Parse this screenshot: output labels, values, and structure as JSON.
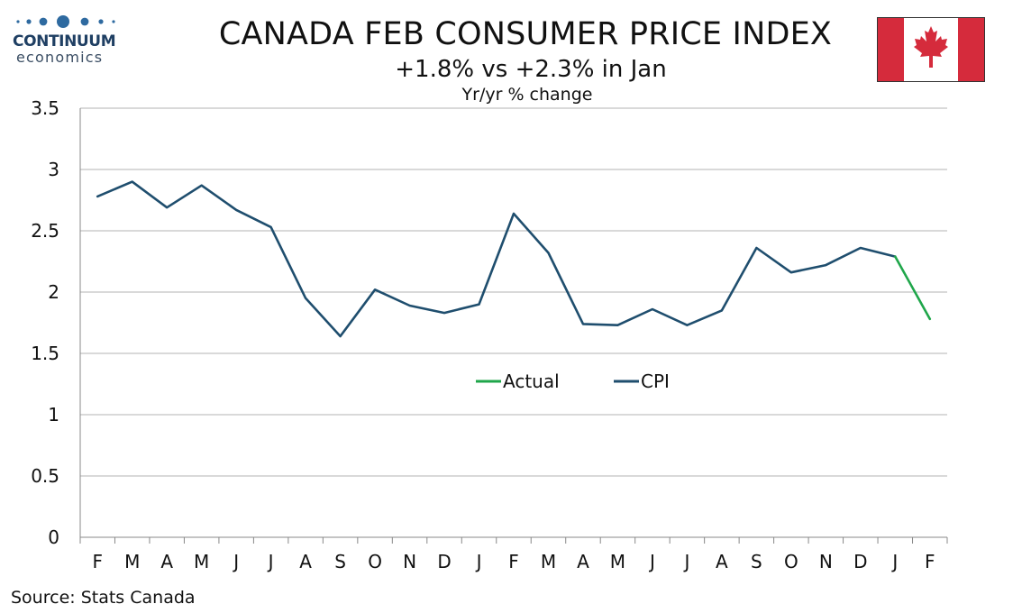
{
  "logo": {
    "name": "CONTINUUM",
    "sub": "economics"
  },
  "flag_icon": "canada-flag-icon",
  "colors": {
    "cpi": "#1f4e6e",
    "actual": "#1fa64a",
    "grid": "#b3b3b3",
    "flag_red": "#d52b3c"
  },
  "chart_data": {
    "type": "line",
    "title": "CANADA FEB CONSUMER PRICE INDEX",
    "subtitle": "+1.8% vs +2.3% in Jan",
    "ylabel": "Yr/yr % change",
    "xlabel": "",
    "categories": [
      "F",
      "M",
      "A",
      "M",
      "J",
      "J",
      "A",
      "S",
      "O",
      "N",
      "D",
      "J",
      "F",
      "M",
      "A",
      "M",
      "J",
      "J",
      "A",
      "S",
      "O",
      "N",
      "D",
      "J",
      "F"
    ],
    "ylim": [
      0,
      3.5
    ],
    "yticks": [
      "0",
      "0.5",
      "1",
      "1.5",
      "2",
      "2.5",
      "3",
      "3.5"
    ],
    "grid": true,
    "legend_position": "center",
    "series": [
      {
        "name": "Actual",
        "color": "#1fa64a",
        "values": [
          null,
          null,
          null,
          null,
          null,
          null,
          null,
          null,
          null,
          null,
          null,
          null,
          null,
          null,
          null,
          null,
          null,
          null,
          null,
          null,
          null,
          null,
          null,
          2.29,
          1.78
        ]
      },
      {
        "name": "CPI",
        "color": "#1f4e6e",
        "values": [
          2.78,
          2.9,
          2.69,
          2.87,
          2.67,
          2.53,
          1.95,
          1.64,
          2.02,
          1.89,
          1.83,
          1.9,
          2.64,
          2.32,
          1.74,
          1.73,
          1.86,
          1.73,
          1.85,
          2.36,
          2.16,
          2.22,
          2.36,
          2.29,
          null
        ]
      }
    ]
  },
  "source": "Source: Stats Canada"
}
